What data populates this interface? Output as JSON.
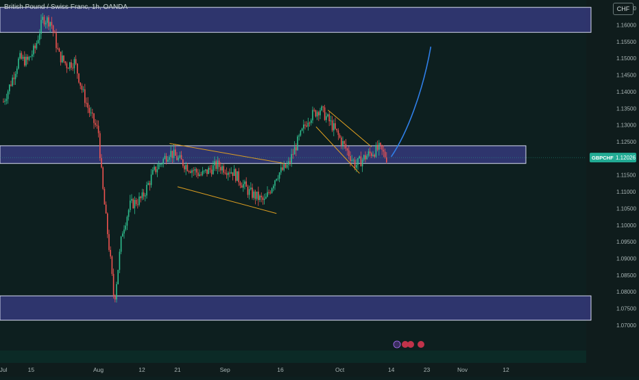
{
  "header": {
    "title": "British Pound / Swiss Franc, 1h, OANDA",
    "currency_button": "CHF"
  },
  "colors": {
    "background": "#0d1f1f",
    "zone_fill": "#3b3f8c",
    "zone_stroke": "#d8dcf0",
    "up_candle": "#2fbf8f",
    "down_candle": "#ef5350",
    "channel_line": "#e0a020",
    "projection": "#2f7fe8",
    "price_tag": "#22ab94"
  },
  "chart_data": {
    "type": "candlestick",
    "symbol_label": "GBPCHF",
    "last_price": "1.12026",
    "y_ticks": [
      "1.16500",
      "1.16000",
      "1.15500",
      "1.15000",
      "1.14500",
      "1.14000",
      "1.13500",
      "1.13000",
      "1.12500",
      "1.12000",
      "1.11500",
      "1.11000",
      "1.10500",
      "1.10000",
      "1.09500",
      "1.09000",
      "1.08500",
      "1.08000",
      "1.07500",
      "1.07000"
    ],
    "y_tick_values": [
      1.165,
      1.16,
      1.155,
      1.15,
      1.145,
      1.14,
      1.135,
      1.13,
      1.125,
      1.12,
      1.115,
      1.11,
      1.105,
      1.1,
      1.095,
      1.09,
      1.085,
      1.08,
      1.075,
      1.07
    ],
    "x_ticks": [
      "Jul",
      "15",
      "Aug",
      "12",
      "21",
      "Sep",
      "16",
      "Oct",
      "14",
      "23",
      "Nov",
      "12"
    ],
    "x_tick_dates": [
      "2024-07-08",
      "2024-07-15",
      "2024-08-01",
      "2024-08-12",
      "2024-08-21",
      "2024-09-02",
      "2024-09-16",
      "2024-10-01",
      "2024-10-14",
      "2024-10-23",
      "2024-11-01",
      "2024-11-12"
    ],
    "zones": [
      {
        "from": 1.1578,
        "to": 1.1653
      },
      {
        "from": 1.1185,
        "to": 1.1238
      },
      {
        "from": 1.0715,
        "to": 1.0788
      }
    ],
    "price_path": [
      {
        "x": "2024-07-08",
        "y": 1.137
      },
      {
        "x": "2024-07-10",
        "y": 1.143
      },
      {
        "x": "2024-07-12",
        "y": 1.15
      },
      {
        "x": "2024-07-14",
        "y": 1.149
      },
      {
        "x": "2024-07-16",
        "y": 1.153
      },
      {
        "x": "2024-07-18",
        "y": 1.162
      },
      {
        "x": "2024-07-20",
        "y": 1.161
      },
      {
        "x": "2024-07-22",
        "y": 1.151
      },
      {
        "x": "2024-07-24",
        "y": 1.148
      },
      {
        "x": "2024-07-26",
        "y": 1.149
      },
      {
        "x": "2024-07-28",
        "y": 1.14
      },
      {
        "x": "2024-07-30",
        "y": 1.133
      },
      {
        "x": "2024-08-01",
        "y": 1.128
      },
      {
        "x": "2024-08-02",
        "y": 1.112
      },
      {
        "x": "2024-08-04",
        "y": 1.09
      },
      {
        "x": "2024-08-05",
        "y": 1.077
      },
      {
        "x": "2024-08-07",
        "y": 1.098
      },
      {
        "x": "2024-08-09",
        "y": 1.106
      },
      {
        "x": "2024-08-12",
        "y": 1.108
      },
      {
        "x": "2024-08-15",
        "y": 1.116
      },
      {
        "x": "2024-08-19",
        "y": 1.122
      },
      {
        "x": "2024-08-23",
        "y": 1.118
      },
      {
        "x": "2024-08-27",
        "y": 1.115
      },
      {
        "x": "2024-08-31",
        "y": 1.118
      },
      {
        "x": "2024-09-04",
        "y": 1.116
      },
      {
        "x": "2024-09-08",
        "y": 1.11
      },
      {
        "x": "2024-09-12",
        "y": 1.107
      },
      {
        "x": "2024-09-15",
        "y": 1.115
      },
      {
        "x": "2024-09-18",
        "y": 1.118
      },
      {
        "x": "2024-09-20",
        "y": 1.124
      },
      {
        "x": "2024-09-23",
        "y": 1.132
      },
      {
        "x": "2024-09-26",
        "y": 1.135
      },
      {
        "x": "2024-09-29",
        "y": 1.13
      },
      {
        "x": "2024-10-02",
        "y": 1.124
      },
      {
        "x": "2024-10-05",
        "y": 1.118
      },
      {
        "x": "2024-10-08",
        "y": 1.121
      },
      {
        "x": "2024-10-11",
        "y": 1.123
      },
      {
        "x": "2024-10-13",
        "y": 1.12
      }
    ],
    "channels": [
      {
        "upper": [
          [
            "2024-08-19",
            1.1245
          ],
          [
            "2024-09-17",
            1.1185
          ]
        ],
        "lower": [
          [
            "2024-08-21",
            1.1115
          ],
          [
            "2024-09-15",
            1.1035
          ]
        ]
      },
      {
        "upper": [
          [
            "2024-09-28",
            1.1345
          ],
          [
            "2024-10-09",
            1.1235
          ]
        ],
        "lower": [
          [
            "2024-09-25",
            1.1295
          ],
          [
            "2024-10-06",
            1.1155
          ]
        ]
      }
    ],
    "projection": [
      [
        "2024-10-14",
        1.1205
      ],
      [
        "2024-10-18",
        1.1275
      ],
      [
        "2024-10-22",
        1.14
      ],
      [
        "2024-10-24",
        1.1535
      ]
    ],
    "grid": false,
    "legend": "none"
  }
}
